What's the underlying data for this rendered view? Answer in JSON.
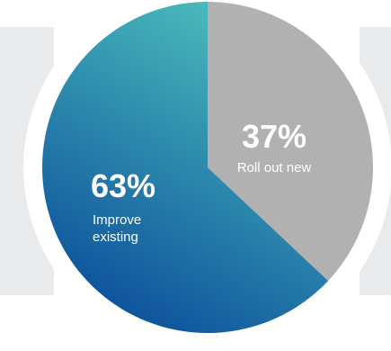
{
  "chart_data": {
    "type": "pie",
    "slices": [
      {
        "value": 63,
        "label": "63%",
        "lines": [
          "Improve",
          "existing"
        ],
        "color_start": "#0b4f9c",
        "color_end": "#4fc4bd"
      },
      {
        "value": 37,
        "label": "37%",
        "lines": [
          "Roll out new"
        ],
        "color": "#b1b1b1"
      }
    ]
  },
  "colors": {
    "panel": "#e9eaec",
    "ring": "#ffffff"
  }
}
